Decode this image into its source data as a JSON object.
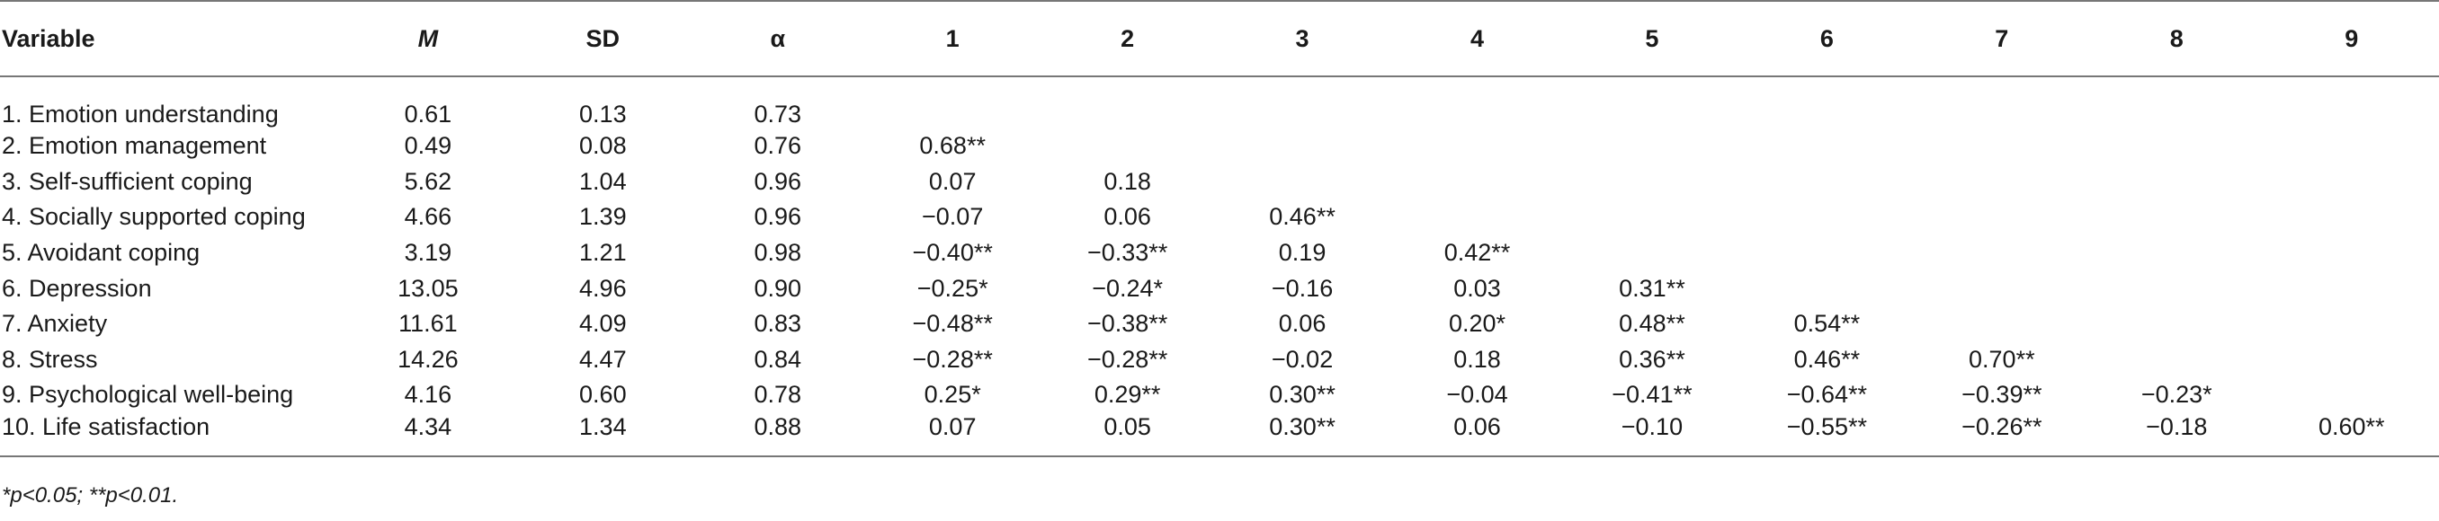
{
  "table": {
    "headers": [
      "Variable",
      "M",
      "SD",
      "α",
      "1",
      "2",
      "3",
      "4",
      "5",
      "6",
      "7",
      "8",
      "9"
    ],
    "rows": [
      [
        "1. Emotion understanding",
        "0.61",
        "0.13",
        "0.73",
        "",
        "",
        "",
        "",
        "",
        "",
        "",
        "",
        ""
      ],
      [
        "2. Emotion management",
        "0.49",
        "0.08",
        "0.76",
        "0.68**",
        "",
        "",
        "",
        "",
        "",
        "",
        "",
        ""
      ],
      [
        "3. Self-sufficient coping",
        "5.62",
        "1.04",
        "0.96",
        "0.07",
        "0.18",
        "",
        "",
        "",
        "",
        "",
        "",
        ""
      ],
      [
        "4. Socially supported coping",
        "4.66",
        "1.39",
        "0.96",
        "−0.07",
        "0.06",
        "0.46**",
        "",
        "",
        "",
        "",
        "",
        ""
      ],
      [
        "5. Avoidant coping",
        "3.19",
        "1.21",
        "0.98",
        "−0.40**",
        "−0.33**",
        "0.19",
        "0.42**",
        "",
        "",
        "",
        "",
        ""
      ],
      [
        "6. Depression",
        "13.05",
        "4.96",
        "0.90",
        "−0.25*",
        "−0.24*",
        "−0.16",
        "0.03",
        "0.31**",
        "",
        "",
        "",
        ""
      ],
      [
        "7. Anxiety",
        "11.61",
        "4.09",
        "0.83",
        "−0.48**",
        "−0.38**",
        "0.06",
        "0.20*",
        "0.48**",
        "0.54**",
        "",
        "",
        ""
      ],
      [
        "8. Stress",
        "14.26",
        "4.47",
        "0.84",
        "−0.28**",
        "−0.28**",
        "−0.02",
        "0.18",
        "0.36**",
        "0.46**",
        "0.70**",
        "",
        ""
      ],
      [
        "9. Psychological well-being",
        "4.16",
        "0.60",
        "0.78",
        "0.25*",
        "0.29**",
        "0.30**",
        "−0.04",
        "−0.41**",
        "−0.64**",
        "−0.39**",
        "−0.23*",
        ""
      ],
      [
        "10. Life satisfaction",
        "4.34",
        "1.34",
        "0.88",
        "0.07",
        "0.05",
        "0.30**",
        "0.06",
        "−0.10",
        "−0.55**",
        "−0.26**",
        "−0.18",
        "0.60**"
      ]
    ]
  },
  "note": "*p<0.05; **p<0.01."
}
